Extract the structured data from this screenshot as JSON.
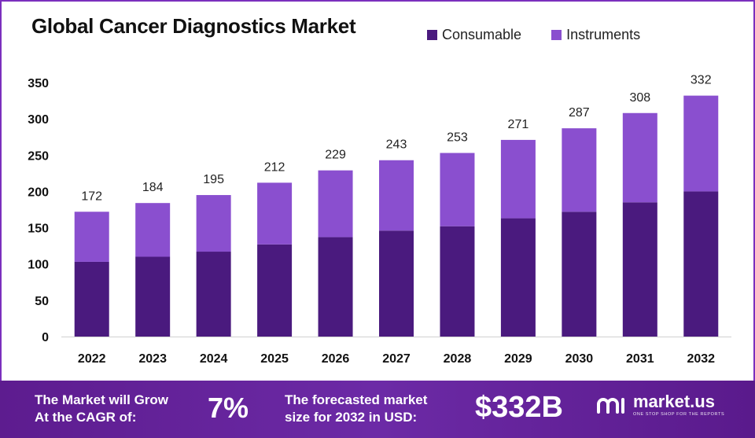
{
  "chart_data": {
    "type": "bar",
    "stacked": true,
    "title": "Global Cancer Diagnostics Market",
    "categories": [
      "2022",
      "2023",
      "2024",
      "2025",
      "2026",
      "2027",
      "2028",
      "2029",
      "2030",
      "2031",
      "2032"
    ],
    "series": [
      {
        "name": "Consumable",
        "color": "#4a1a7e",
        "values": [
          103,
          110,
          117,
          127,
          137,
          146,
          152,
          163,
          172,
          185,
          200
        ]
      },
      {
        "name": "Instruments",
        "color": "#8a4fcf",
        "values": [
          69,
          74,
          78,
          85,
          92,
          97,
          101,
          108,
          115,
          123,
          132
        ]
      }
    ],
    "totals": [
      172,
      184,
      195,
      212,
      229,
      243,
      253,
      271,
      287,
      308,
      332
    ],
    "yticks": [
      0,
      50,
      100,
      150,
      200,
      250,
      300,
      350
    ],
    "ylim": [
      0,
      350
    ],
    "legend_position": "top-right",
    "grid": false
  },
  "footer": {
    "cagr_line1": "The Market will Grow",
    "cagr_line2": "At the CAGR of:",
    "cagr_value": "7%",
    "forecast_line1": "The forecasted market",
    "forecast_line2": "size for 2032 in USD:",
    "forecast_value": "$332B",
    "brand_name": "market.us",
    "brand_tagline": "ONE STOP SHOP FOR THE REPORTS"
  }
}
